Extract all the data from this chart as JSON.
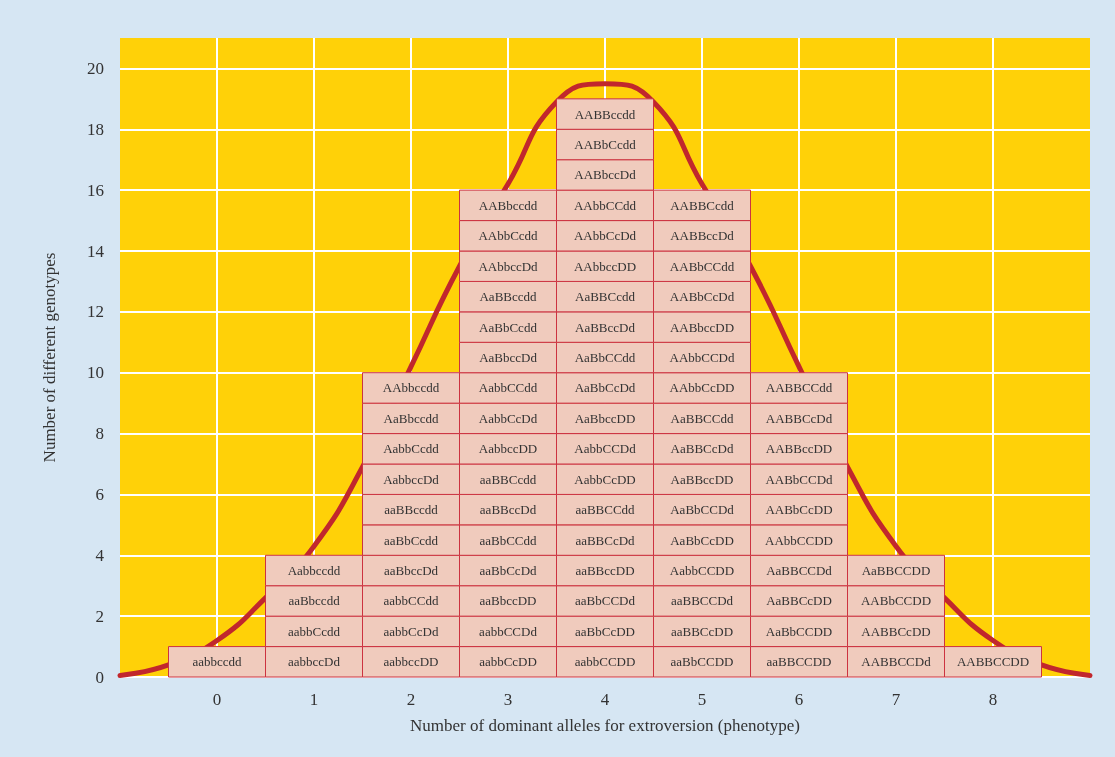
{
  "chart_data": {
    "type": "bar",
    "stacked": true,
    "xlabel": "Number of dominant alleles for extroversion (phenotype)",
    "ylabel": "Number of different genotypes",
    "x": [
      0,
      1,
      2,
      3,
      4,
      5,
      6,
      7,
      8
    ],
    "xlim": [
      -1,
      9
    ],
    "xticks": [
      0,
      1,
      2,
      3,
      4,
      5,
      6,
      7,
      8
    ],
    "ylim": [
      0,
      21
    ],
    "yticks": [
      0,
      2,
      4,
      6,
      8,
      10,
      12,
      14,
      16,
      18,
      20
    ],
    "grid": true,
    "series": [
      {
        "color": "#f0cbbd",
        "values": [
          1,
          1,
          1,
          1,
          1,
          1,
          1,
          1,
          1
        ],
        "value_labels": [
          "aabbccdd",
          "aabbccDd",
          "aabbccDD",
          "aabbCcDD",
          "aabbCCDD",
          "aaBbCCDD",
          "aaBBCCDD",
          "AABBCCDd",
          "AABBCCDD"
        ]
      },
      {
        "color": "#f0cbbd",
        "values": [
          null,
          1,
          1,
          1,
          1,
          1,
          1,
          1,
          null
        ],
        "value_labels": [
          null,
          "aabbCcdd",
          "aabbCcDd",
          "aabbCCDd",
          "aaBbCcDD",
          "aaBBCcDD",
          "AaBbCCDD",
          "AABBCcDD",
          null
        ]
      },
      {
        "color": "#f0cbbd",
        "values": [
          null,
          1,
          1,
          1,
          1,
          1,
          1,
          1,
          null
        ],
        "value_labels": [
          null,
          "aaBbccdd",
          "aabbCCdd",
          "aaBbccDD",
          "aaBbCCDd",
          "aaBBCCDd",
          "AaBBCcDD",
          "AABbCCDD",
          null
        ]
      },
      {
        "color": "#f0cbbd",
        "values": [
          null,
          1,
          1,
          1,
          1,
          1,
          1,
          1,
          null
        ],
        "value_labels": [
          null,
          "Aabbccdd",
          "aaBbccDd",
          "aaBbCcDd",
          "aaBBccDD",
          "AabbCCDD",
          "AaBBCCDd",
          "AaBBCCDD",
          null
        ]
      },
      {
        "color": "#f0cbbd",
        "values": [
          null,
          null,
          1,
          1,
          1,
          1,
          1,
          null,
          null
        ],
        "value_labels": [
          null,
          null,
          "aaBbCcdd",
          "aaBbCCdd",
          "aaBBCcDd",
          "AaBbCcDD",
          "AAbbCCDD",
          null,
          null
        ]
      },
      {
        "color": "#f0cbbd",
        "values": [
          null,
          null,
          1,
          1,
          1,
          1,
          1,
          null,
          null
        ],
        "value_labels": [
          null,
          null,
          "aaBBccdd",
          "aaBBccDd",
          "aaBBCCdd",
          "AaBbCCDd",
          "AABbCcDD",
          null,
          null
        ]
      },
      {
        "color": "#f0cbbd",
        "values": [
          null,
          null,
          1,
          1,
          1,
          1,
          1,
          null,
          null
        ],
        "value_labels": [
          null,
          null,
          "AabbccDd",
          "aaBBCcdd",
          "AabbCcDD",
          "AaBBccDD",
          "AABbCCDd",
          null,
          null
        ]
      },
      {
        "color": "#f0cbbd",
        "values": [
          null,
          null,
          1,
          1,
          1,
          1,
          1,
          null,
          null
        ],
        "value_labels": [
          null,
          null,
          "AabbCcdd",
          "AabbccDD",
          "AabbCCDd",
          "AaBBCcDd",
          "AABBccDD",
          null,
          null
        ]
      },
      {
        "color": "#f0cbbd",
        "values": [
          null,
          null,
          1,
          1,
          1,
          1,
          1,
          null,
          null
        ],
        "value_labels": [
          null,
          null,
          "AaBbccdd",
          "AabbCcDd",
          "AaBbccDD",
          "AaBBCCdd",
          "AABBCcDd",
          null,
          null
        ]
      },
      {
        "color": "#f0cbbd",
        "values": [
          null,
          null,
          1,
          1,
          1,
          1,
          1,
          null,
          null
        ],
        "value_labels": [
          null,
          null,
          "AAbbccdd",
          "AabbCCdd",
          "AaBbCcDd",
          "AAbbCcDD",
          "AABBCCdd",
          null,
          null
        ]
      },
      {
        "color": "#f0cbbd",
        "values": [
          null,
          null,
          null,
          1,
          1,
          1,
          null,
          null,
          null
        ],
        "value_labels": [
          null,
          null,
          null,
          "AaBbccDd",
          "AaBbCCdd",
          "AAbbCCDd",
          null,
          null,
          null
        ]
      },
      {
        "color": "#f0cbbd",
        "values": [
          null,
          null,
          null,
          1,
          1,
          1,
          null,
          null,
          null
        ],
        "value_labels": [
          null,
          null,
          null,
          "AaBbCcdd",
          "AaBBccDd",
          "AABbccDD",
          null,
          null,
          null
        ]
      },
      {
        "color": "#f0cbbd",
        "values": [
          null,
          null,
          null,
          1,
          1,
          1,
          null,
          null,
          null
        ],
        "value_labels": [
          null,
          null,
          null,
          "AaBBccdd",
          "AaBBCcdd",
          "AABbCcDd",
          null,
          null,
          null
        ]
      },
      {
        "color": "#f0cbbd",
        "values": [
          null,
          null,
          null,
          1,
          1,
          1,
          null,
          null,
          null
        ],
        "value_labels": [
          null,
          null,
          null,
          "AAbbccDd",
          "AAbbccDD",
          "AABbCCdd",
          null,
          null,
          null
        ]
      },
      {
        "color": "#f0cbbd",
        "values": [
          null,
          null,
          null,
          1,
          1,
          1,
          null,
          null,
          null
        ],
        "value_labels": [
          null,
          null,
          null,
          "AAbbCcdd",
          "AAbbCcDd",
          "AABBccDd",
          null,
          null,
          null
        ]
      },
      {
        "color": "#f0cbbd",
        "values": [
          null,
          null,
          null,
          1,
          1,
          1,
          null,
          null,
          null
        ],
        "value_labels": [
          null,
          null,
          null,
          "AABbccdd",
          "AAbbCCdd",
          "AABBCcdd",
          null,
          null,
          null
        ]
      },
      {
        "color": "#f0cbbd",
        "values": [
          null,
          null,
          null,
          null,
          1,
          null,
          null,
          null,
          null
        ],
        "value_labels": [
          null,
          null,
          null,
          null,
          "AABbccDd",
          null,
          null,
          null,
          null
        ]
      },
      {
        "color": "#f0cbbd",
        "values": [
          null,
          null,
          null,
          null,
          1,
          null,
          null,
          null,
          null
        ],
        "value_labels": [
          null,
          null,
          null,
          null,
          "AABbCcdd",
          null,
          null,
          null,
          null
        ]
      },
      {
        "color": "#f0cbbd",
        "values": [
          null,
          null,
          null,
          null,
          1,
          null,
          null,
          null,
          null
        ],
        "value_labels": [
          null,
          null,
          null,
          null,
          "AABBccdd",
          null,
          null,
          null,
          null
        ]
      },
      {
        "type": "line",
        "color": "#c1272d",
        "marker": "none",
        "x": [
          -1,
          -0.5,
          0,
          0.5,
          1,
          1.5,
          2,
          2.5,
          3,
          3.5,
          4,
          4.5,
          5,
          5.5,
          6,
          6.5,
          7,
          7.5,
          8,
          8.5,
          9
        ],
        "values": [
          0.05,
          0.4,
          1.2,
          2.6,
          4.3,
          6.9,
          10.2,
          13.5,
          16.2,
          18.9,
          19.5,
          18.9,
          16.2,
          13.5,
          10.2,
          6.9,
          4.3,
          2.6,
          1.2,
          0.4,
          0.05
        ]
      }
    ]
  }
}
